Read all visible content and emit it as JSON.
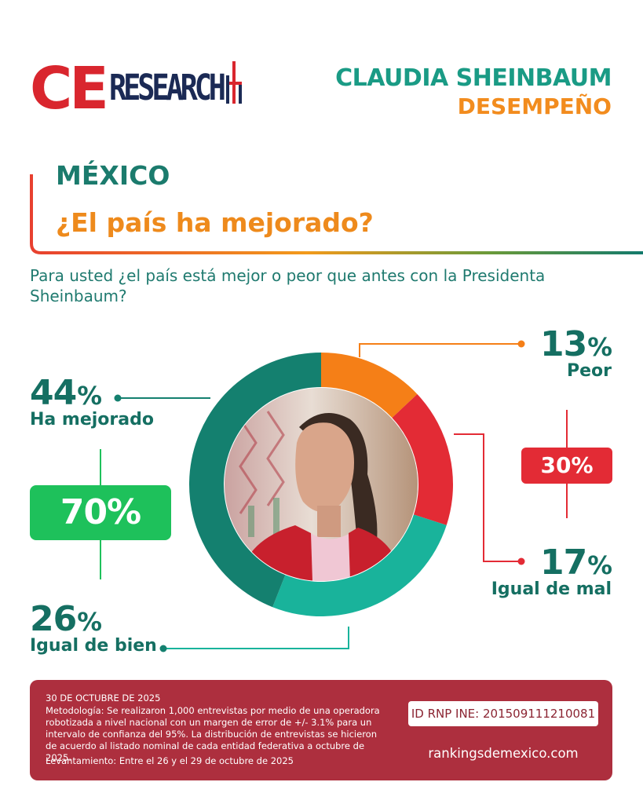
{
  "brand": {
    "logo_ce": "CE",
    "logo_research": "RESEARCH",
    "primary_red": "#d9262e",
    "navy": "#1b2a55"
  },
  "header": {
    "title": "CLAUDIA SHEINBAUM",
    "subtitle": "DESEMPEÑO"
  },
  "section": {
    "region": "MÉXICO",
    "question_title": "¿El país ha mejorado?",
    "question_text": "Para usted ¿el país está mejor o peor que antes con la Presidenta Sheinbaum?"
  },
  "chart_data": {
    "type": "pie",
    "variant": "donut",
    "slices": [
      {
        "label": "Peor",
        "value": 13,
        "color": "#f57f17"
      },
      {
        "label": "Igual de mal",
        "value": 17,
        "color": "#e32b35"
      },
      {
        "label": "Igual de bien",
        "value": 26,
        "color": "#19b39b"
      },
      {
        "label": "Ha mejorado",
        "value": 44,
        "color": "#14806f"
      }
    ],
    "groups": [
      {
        "value": "70%",
        "color": "#1ec15b",
        "members": [
          "Ha mejorado",
          "Igual de bien"
        ]
      },
      {
        "value": "30%",
        "color": "#e32b35",
        "members": [
          "Peor",
          "Igual de mal"
        ]
      }
    ],
    "labels": {
      "v44": "44",
      "l44": "Ha mejorado",
      "v26": "26",
      "l26": "Igual de bien",
      "v13": "13",
      "l13": "Peor",
      "v17": "17",
      "l17": "Igual de mal",
      "unit": "%",
      "group_positive": "70%",
      "group_negative": "30%"
    }
  },
  "footer": {
    "date": "30 DE OCTUBRE DE 2025",
    "methodology": "Metodología: Se realizaron 1,000 entrevistas por medio de una operadora robotizada a nivel nacional con un margen de error de +/- 3.1% para un intervalo de confianza del 95%. La distribución de entrevistas se hicieron de acuerdo al listado nominal de cada entidad federativa a octubre de 2025.",
    "fieldwork": "Levantamiento: Entre el 26 y el 29 de octubre de 2025",
    "rnp_id": "ID RNP INE: 201509111210081",
    "website": "rankingsdemexico.com"
  }
}
